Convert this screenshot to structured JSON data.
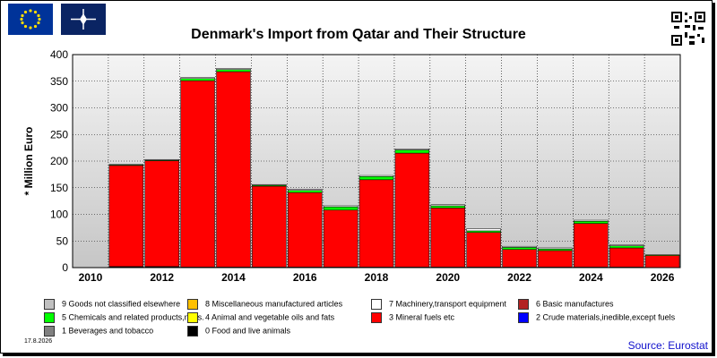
{
  "header": {
    "title": "Denmark's Import from Qatar and Their Structure"
  },
  "footer": {
    "date": "17.8.2026",
    "source": "Source: Eurostat"
  },
  "legend": [
    {
      "label": "9 Goods not classified elsewhere",
      "color": "#c0c0c0"
    },
    {
      "label": "8 Miscellaneous manufactured articles",
      "color": "#ffc000"
    },
    {
      "label": "7 Machinery,transport equipment",
      "color": "#ffffff"
    },
    {
      "label": "6 Basic manufactures",
      "color": "#b22222"
    },
    {
      "label": "5 Chemicals and related products,n.e.s.",
      "color": "#00ff00"
    },
    {
      "label": "4 Animal and vegetable oils and fats",
      "color": "#ffff00"
    },
    {
      "label": "3 Mineral fuels etc",
      "color": "#ff0000"
    },
    {
      "label": "2 Crude materials,inedible,except fuels",
      "color": "#0000ff"
    },
    {
      "label": "1 Beverages and tobacco",
      "color": "#808080"
    },
    {
      "label": "0 Food and live animals",
      "color": "#000000"
    }
  ],
  "chart_data": {
    "type": "bar",
    "stacked": true,
    "title": "Denmark's Import from Qatar and Their Structure",
    "ylabel": "* Million Euro",
    "xlabel": "",
    "ylim": [
      0,
      400
    ],
    "yticks": [
      0,
      50,
      100,
      150,
      200,
      250,
      300,
      350,
      400
    ],
    "xtick_labels": [
      "2010",
      "2012",
      "2014",
      "2016",
      "2018",
      "2020",
      "2022",
      "2024",
      "2026"
    ],
    "categories": [
      "2010",
      "2011",
      "2012",
      "2013",
      "2014",
      "2015",
      "2016",
      "2017",
      "2018",
      "2019",
      "2020",
      "2021",
      "2022",
      "2023",
      "2024",
      "2025",
      "2026"
    ],
    "grid": true,
    "series": [
      {
        "name": "0 Food and live animals",
        "color": "#000000",
        "values": [
          0,
          2,
          2,
          1,
          1,
          1,
          1,
          1,
          1,
          1,
          1,
          1,
          1,
          1,
          1,
          1,
          0
        ]
      },
      {
        "name": "3 Mineral fuels etc",
        "color": "#ff0000",
        "values": [
          0,
          190,
          199,
          350,
          367,
          152,
          140,
          107,
          164,
          214,
          111,
          65,
          33,
          31,
          82,
          36,
          23
        ]
      },
      {
        "name": "5 Chemicals and related products,n.e.s.",
        "color": "#00ff00",
        "values": [
          0,
          1,
          1,
          4,
          4,
          2,
          4,
          6,
          6,
          6,
          4,
          3,
          4,
          3,
          4,
          4,
          1
        ]
      },
      {
        "name": "7 Machinery,transport equipment",
        "color": "#ffffff",
        "values": [
          0,
          1,
          1,
          2,
          2,
          1,
          2,
          2,
          2,
          2,
          2,
          4,
          2,
          2,
          2,
          2,
          0
        ]
      }
    ]
  }
}
